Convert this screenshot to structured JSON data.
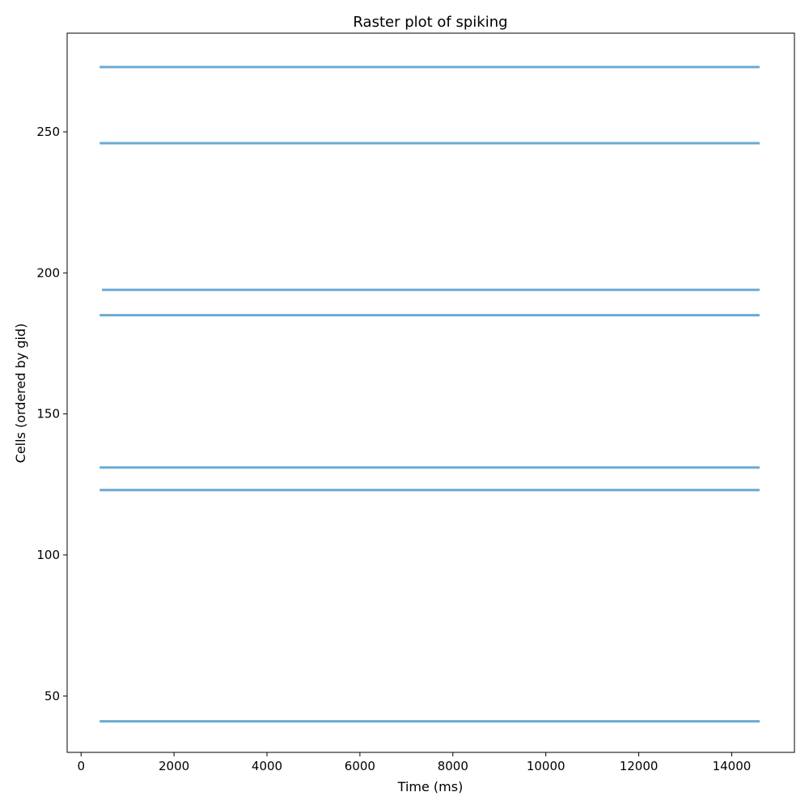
{
  "chart_data": {
    "type": "scatter",
    "title": "Raster plot of spiking",
    "xlabel": "Time (ms)",
    "ylabel": "Cells (ordered by gid)",
    "xlim": [
      -300,
      15350
    ],
    "ylim": [
      30,
      285
    ],
    "x_ticks": [
      0,
      2000,
      4000,
      6000,
      8000,
      10000,
      12000,
      14000
    ],
    "y_ticks": [
      50,
      100,
      150,
      200,
      250
    ],
    "spike_color": "#6aaad4",
    "grid": false,
    "series": [
      {
        "gid": 41,
        "t_start": 400,
        "t_end": 14600
      },
      {
        "gid": 123,
        "t_start": 400,
        "t_end": 14600
      },
      {
        "gid": 131,
        "t_start": 400,
        "t_end": 14600
      },
      {
        "gid": 185,
        "t_start": 400,
        "t_end": 14600
      },
      {
        "gid": 194,
        "t_start": 450,
        "t_end": 14600
      },
      {
        "gid": 246,
        "t_start": 400,
        "t_end": 14600
      },
      {
        "gid": 273,
        "t_start": 400,
        "t_end": 14600
      }
    ]
  }
}
